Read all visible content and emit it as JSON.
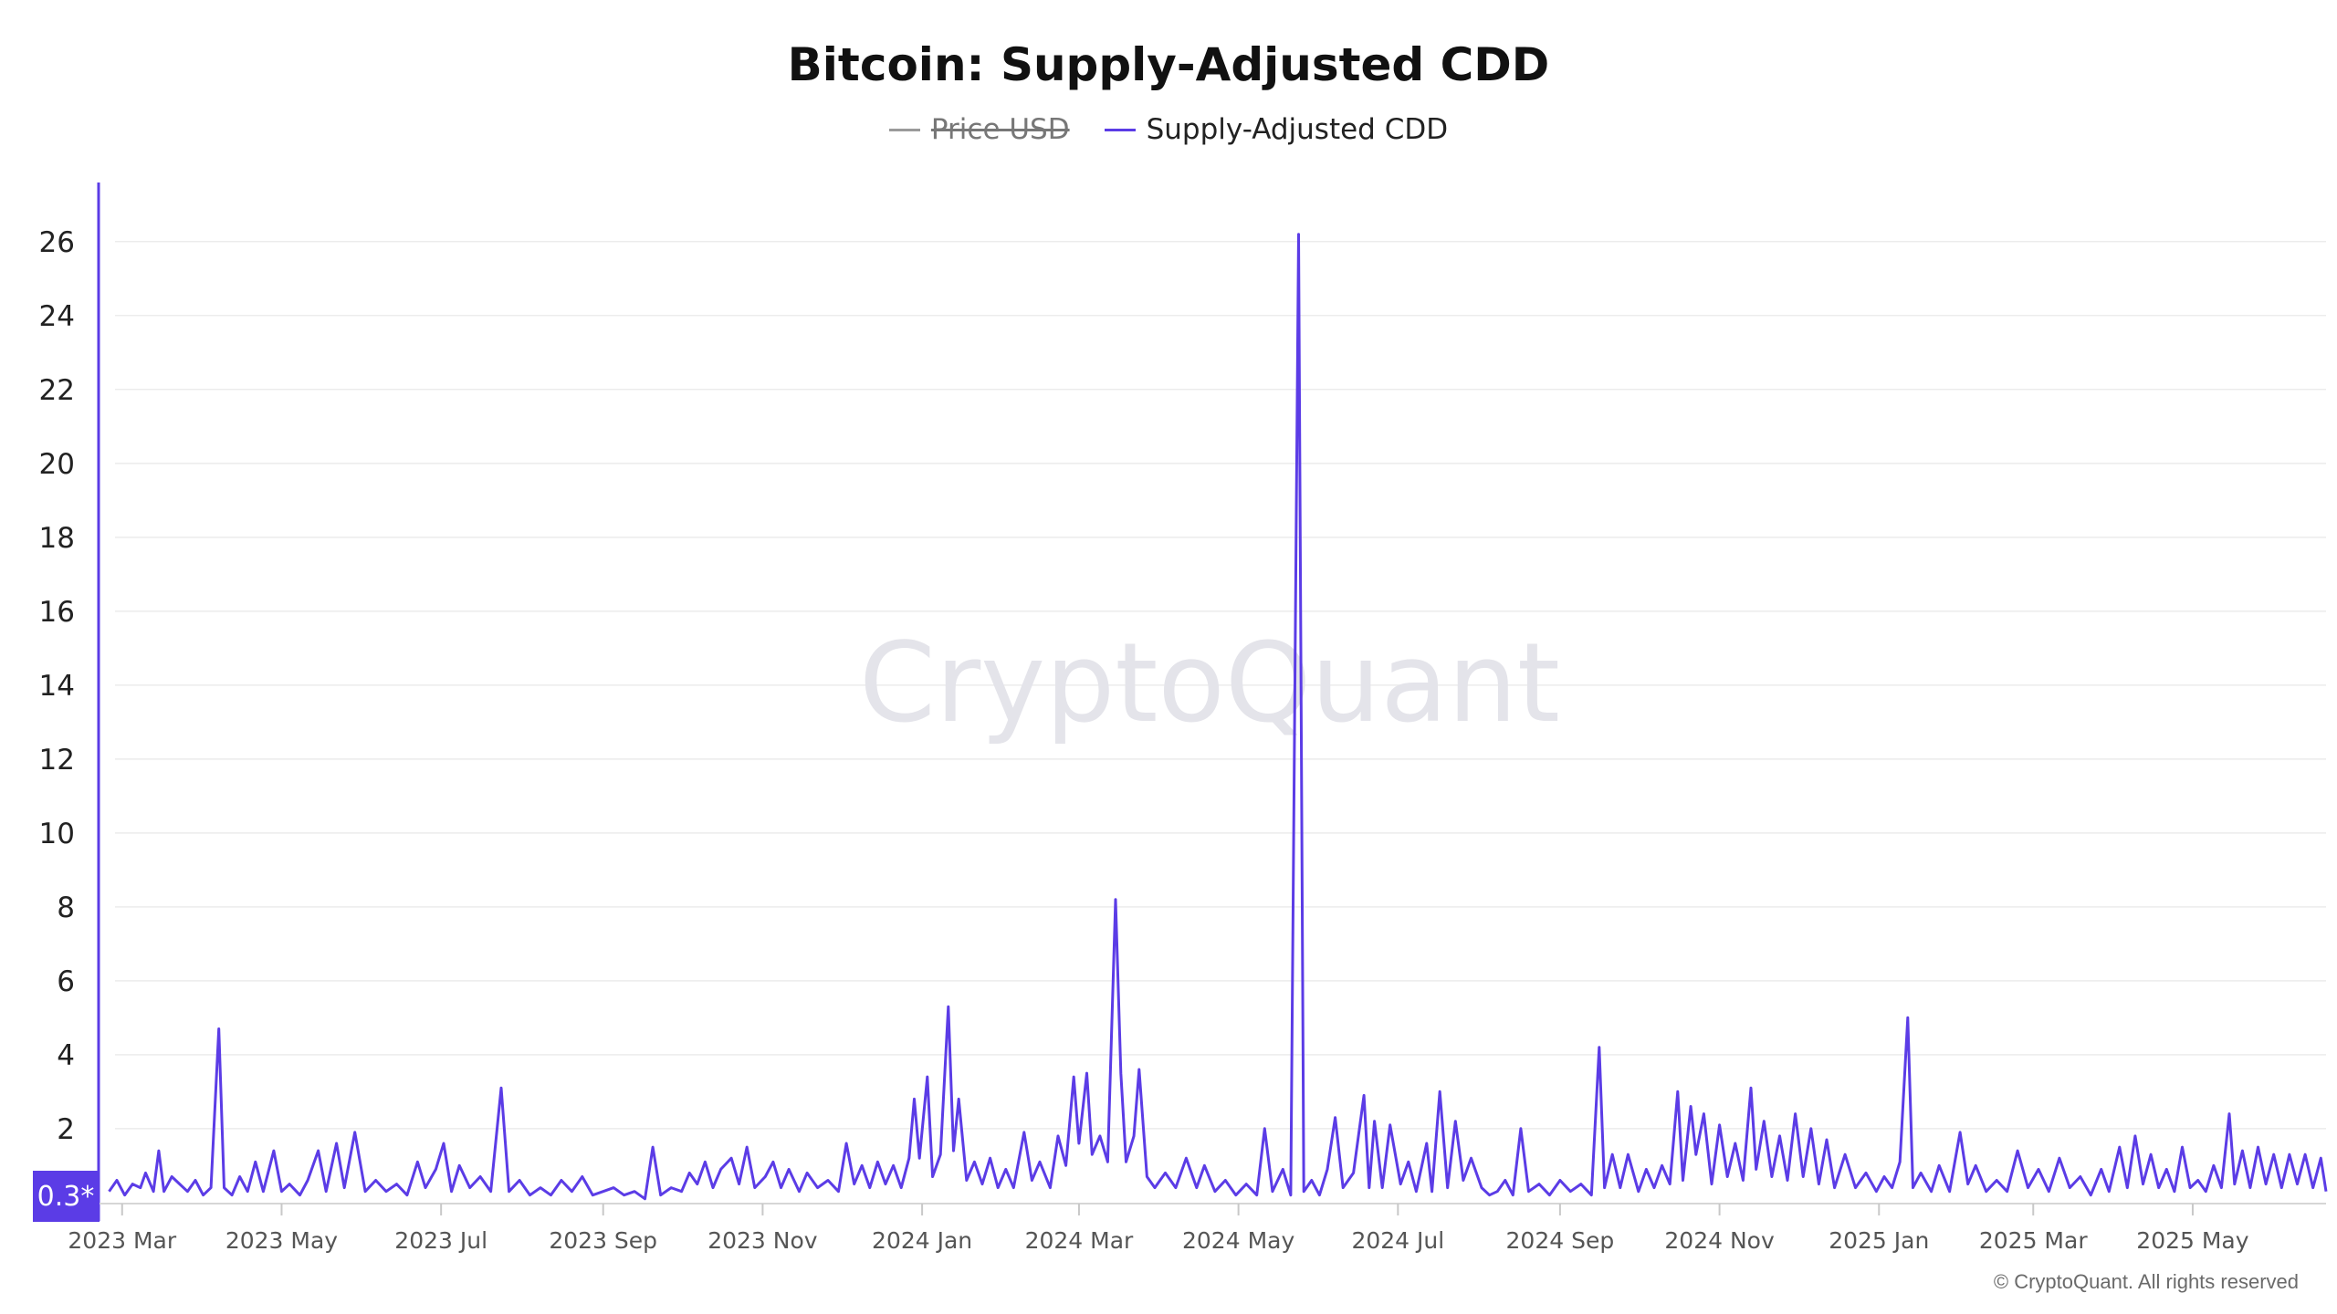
{
  "chart_data": {
    "type": "line",
    "title": "Bitcoin: Supply-Adjusted CDD",
    "legend": [
      {
        "name": "Price USD",
        "hidden": true,
        "color": "#9a9a9a"
      },
      {
        "name": "Supply-Adjusted CDD",
        "hidden": false,
        "color": "#5b3ce6"
      }
    ],
    "watermark": "CryptoQuant",
    "copyright": "© CryptoQuant. All rights reserved",
    "current_value_label": "0.3*",
    "ylim": [
      -0.3,
      27.6
    ],
    "yticks": [
      2,
      4,
      6,
      8,
      10,
      12,
      14,
      16,
      18,
      20,
      22,
      24,
      26
    ],
    "xlim": [
      "2023-02-20",
      "2025-06-21"
    ],
    "xticks": [
      {
        "label": "2023 Mar",
        "date": "2023-03-01"
      },
      {
        "label": "2023 May",
        "date": "2023-05-01"
      },
      {
        "label": "2023 Jul",
        "date": "2023-07-01"
      },
      {
        "label": "2023 Sep",
        "date": "2023-09-01"
      },
      {
        "label": "2023 Nov",
        "date": "2023-11-01"
      },
      {
        "label": "2024 Jan",
        "date": "2024-01-01"
      },
      {
        "label": "2024 Mar",
        "date": "2024-03-01"
      },
      {
        "label": "2024 May",
        "date": "2024-05-01"
      },
      {
        "label": "2024 Jul",
        "date": "2024-07-01"
      },
      {
        "label": "2024 Sep",
        "date": "2024-09-01"
      },
      {
        "label": "2024 Nov",
        "date": "2024-11-01"
      },
      {
        "label": "2025 Jan",
        "date": "2025-01-01"
      },
      {
        "label": "2025 Mar",
        "date": "2025-03-01"
      },
      {
        "label": "2025 May",
        "date": "2025-05-01"
      }
    ],
    "grid": true,
    "series": [
      {
        "name": "Supply-Adjusted CDD",
        "color": "#5b3ce6",
        "points": [
          [
            "2023-02-24",
            0.3
          ],
          [
            "2023-02-27",
            0.6
          ],
          [
            "2023-03-02",
            0.2
          ],
          [
            "2023-03-05",
            0.5
          ],
          [
            "2023-03-08",
            0.4
          ],
          [
            "2023-03-10",
            0.8
          ],
          [
            "2023-03-13",
            0.3
          ],
          [
            "2023-03-15",
            1.4
          ],
          [
            "2023-03-17",
            0.3
          ],
          [
            "2023-03-20",
            0.7
          ],
          [
            "2023-03-23",
            0.5
          ],
          [
            "2023-03-26",
            0.3
          ],
          [
            "2023-03-29",
            0.6
          ],
          [
            "2023-04-01",
            0.2
          ],
          [
            "2023-04-04",
            0.4
          ],
          [
            "2023-04-07",
            4.7
          ],
          [
            "2023-04-09",
            0.4
          ],
          [
            "2023-04-12",
            0.2
          ],
          [
            "2023-04-15",
            0.7
          ],
          [
            "2023-04-18",
            0.3
          ],
          [
            "2023-04-21",
            1.1
          ],
          [
            "2023-04-24",
            0.3
          ],
          [
            "2023-04-28",
            1.4
          ],
          [
            "2023-05-01",
            0.3
          ],
          [
            "2023-05-04",
            0.5
          ],
          [
            "2023-05-08",
            0.2
          ],
          [
            "2023-05-11",
            0.6
          ],
          [
            "2023-05-15",
            1.4
          ],
          [
            "2023-05-18",
            0.3
          ],
          [
            "2023-05-22",
            1.6
          ],
          [
            "2023-05-25",
            0.4
          ],
          [
            "2023-05-29",
            1.9
          ],
          [
            "2023-06-02",
            0.3
          ],
          [
            "2023-06-06",
            0.6
          ],
          [
            "2023-06-10",
            0.3
          ],
          [
            "2023-06-14",
            0.5
          ],
          [
            "2023-06-18",
            0.2
          ],
          [
            "2023-06-22",
            1.1
          ],
          [
            "2023-06-25",
            0.4
          ],
          [
            "2023-06-29",
            0.9
          ],
          [
            "2023-07-02",
            1.6
          ],
          [
            "2023-07-05",
            0.3
          ],
          [
            "2023-07-08",
            1.0
          ],
          [
            "2023-07-12",
            0.4
          ],
          [
            "2023-07-16",
            0.7
          ],
          [
            "2023-07-20",
            0.3
          ],
          [
            "2023-07-24",
            3.1
          ],
          [
            "2023-07-27",
            0.3
          ],
          [
            "2023-07-31",
            0.6
          ],
          [
            "2023-08-04",
            0.2
          ],
          [
            "2023-08-08",
            0.4
          ],
          [
            "2023-08-12",
            0.2
          ],
          [
            "2023-08-16",
            0.6
          ],
          [
            "2023-08-20",
            0.3
          ],
          [
            "2023-08-24",
            0.7
          ],
          [
            "2023-08-28",
            0.2
          ],
          [
            "2023-09-01",
            0.3
          ],
          [
            "2023-09-05",
            0.4
          ],
          [
            "2023-09-09",
            0.2
          ],
          [
            "2023-09-13",
            0.3
          ],
          [
            "2023-09-17",
            0.1
          ],
          [
            "2023-09-20",
            1.5
          ],
          [
            "2023-09-23",
            0.2
          ],
          [
            "2023-09-27",
            0.4
          ],
          [
            "2023-10-01",
            0.3
          ],
          [
            "2023-10-04",
            0.8
          ],
          [
            "2023-10-07",
            0.5
          ],
          [
            "2023-10-10",
            1.1
          ],
          [
            "2023-10-13",
            0.4
          ],
          [
            "2023-10-16",
            0.9
          ],
          [
            "2023-10-20",
            1.2
          ],
          [
            "2023-10-23",
            0.5
          ],
          [
            "2023-10-26",
            1.5
          ],
          [
            "2023-10-29",
            0.4
          ],
          [
            "2023-11-02",
            0.7
          ],
          [
            "2023-11-05",
            1.1
          ],
          [
            "2023-11-08",
            0.4
          ],
          [
            "2023-11-11",
            0.9
          ],
          [
            "2023-11-15",
            0.3
          ],
          [
            "2023-11-18",
            0.8
          ],
          [
            "2023-11-22",
            0.4
          ],
          [
            "2023-11-26",
            0.6
          ],
          [
            "2023-11-30",
            0.3
          ],
          [
            "2023-12-03",
            1.6
          ],
          [
            "2023-12-06",
            0.5
          ],
          [
            "2023-12-09",
            1.0
          ],
          [
            "2023-12-12",
            0.4
          ],
          [
            "2023-12-15",
            1.1
          ],
          [
            "2023-12-18",
            0.5
          ],
          [
            "2023-12-21",
            1.0
          ],
          [
            "2023-12-24",
            0.4
          ],
          [
            "2023-12-27",
            1.2
          ],
          [
            "2023-12-29",
            2.8
          ],
          [
            "2023-12-31",
            1.2
          ],
          [
            "2024-01-03",
            3.4
          ],
          [
            "2024-01-05",
            0.7
          ],
          [
            "2024-01-08",
            1.3
          ],
          [
            "2024-01-11",
            5.3
          ],
          [
            "2024-01-13",
            1.4
          ],
          [
            "2024-01-15",
            2.8
          ],
          [
            "2024-01-18",
            0.6
          ],
          [
            "2024-01-21",
            1.1
          ],
          [
            "2024-01-24",
            0.5
          ],
          [
            "2024-01-27",
            1.2
          ],
          [
            "2024-01-30",
            0.4
          ],
          [
            "2024-02-02",
            0.9
          ],
          [
            "2024-02-05",
            0.4
          ],
          [
            "2024-02-09",
            1.9
          ],
          [
            "2024-02-12",
            0.6
          ],
          [
            "2024-02-15",
            1.1
          ],
          [
            "2024-02-19",
            0.4
          ],
          [
            "2024-02-22",
            1.8
          ],
          [
            "2024-02-25",
            1.0
          ],
          [
            "2024-02-28",
            3.4
          ],
          [
            "2024-03-01",
            1.6
          ],
          [
            "2024-03-04",
            3.5
          ],
          [
            "2024-03-06",
            1.3
          ],
          [
            "2024-03-09",
            1.8
          ],
          [
            "2024-03-12",
            1.1
          ],
          [
            "2024-03-15",
            8.2
          ],
          [
            "2024-03-17",
            3.5
          ],
          [
            "2024-03-19",
            1.1
          ],
          [
            "2024-03-22",
            1.8
          ],
          [
            "2024-03-24",
            3.6
          ],
          [
            "2024-03-27",
            0.7
          ],
          [
            "2024-03-30",
            0.4
          ],
          [
            "2024-04-03",
            0.8
          ],
          [
            "2024-04-07",
            0.4
          ],
          [
            "2024-04-11",
            1.2
          ],
          [
            "2024-04-15",
            0.4
          ],
          [
            "2024-04-18",
            1.0
          ],
          [
            "2024-04-22",
            0.3
          ],
          [
            "2024-04-26",
            0.6
          ],
          [
            "2024-04-30",
            0.2
          ],
          [
            "2024-05-04",
            0.5
          ],
          [
            "2024-05-08",
            0.2
          ],
          [
            "2024-05-11",
            2.0
          ],
          [
            "2024-05-14",
            0.3
          ],
          [
            "2024-05-18",
            0.9
          ],
          [
            "2024-05-21",
            0.2
          ],
          [
            "2024-05-24",
            26.2
          ],
          [
            "2024-05-26",
            0.3
          ],
          [
            "2024-05-29",
            0.6
          ],
          [
            "2024-06-01",
            0.2
          ],
          [
            "2024-06-04",
            0.9
          ],
          [
            "2024-06-07",
            2.3
          ],
          [
            "2024-06-10",
            0.4
          ],
          [
            "2024-06-14",
            0.8
          ],
          [
            "2024-06-18",
            2.9
          ],
          [
            "2024-06-20",
            0.4
          ],
          [
            "2024-06-22",
            2.2
          ],
          [
            "2024-06-25",
            0.4
          ],
          [
            "2024-06-28",
            2.1
          ],
          [
            "2024-07-02",
            0.5
          ],
          [
            "2024-07-05",
            1.1
          ],
          [
            "2024-07-08",
            0.3
          ],
          [
            "2024-07-12",
            1.6
          ],
          [
            "2024-07-14",
            0.3
          ],
          [
            "2024-07-17",
            3.0
          ],
          [
            "2024-07-20",
            0.4
          ],
          [
            "2024-07-23",
            2.2
          ],
          [
            "2024-07-26",
            0.6
          ],
          [
            "2024-07-29",
            1.2
          ],
          [
            "2024-08-02",
            0.4
          ],
          [
            "2024-08-05",
            0.2
          ],
          [
            "2024-08-08",
            0.3
          ],
          [
            "2024-08-11",
            0.6
          ],
          [
            "2024-08-14",
            0.2
          ],
          [
            "2024-08-17",
            2.0
          ],
          [
            "2024-08-20",
            0.3
          ],
          [
            "2024-08-24",
            0.5
          ],
          [
            "2024-08-28",
            0.2
          ],
          [
            "2024-09-01",
            0.6
          ],
          [
            "2024-09-05",
            0.3
          ],
          [
            "2024-09-09",
            0.5
          ],
          [
            "2024-09-13",
            0.2
          ],
          [
            "2024-09-16",
            4.2
          ],
          [
            "2024-09-18",
            0.4
          ],
          [
            "2024-09-21",
            1.3
          ],
          [
            "2024-09-24",
            0.4
          ],
          [
            "2024-09-27",
            1.3
          ],
          [
            "2024-10-01",
            0.3
          ],
          [
            "2024-10-04",
            0.9
          ],
          [
            "2024-10-07",
            0.4
          ],
          [
            "2024-10-10",
            1.0
          ],
          [
            "2024-10-13",
            0.5
          ],
          [
            "2024-10-16",
            3.0
          ],
          [
            "2024-10-18",
            0.6
          ],
          [
            "2024-10-21",
            2.6
          ],
          [
            "2024-10-23",
            1.3
          ],
          [
            "2024-10-26",
            2.4
          ],
          [
            "2024-10-29",
            0.5
          ],
          [
            "2024-11-01",
            2.1
          ],
          [
            "2024-11-04",
            0.7
          ],
          [
            "2024-11-07",
            1.6
          ],
          [
            "2024-11-10",
            0.6
          ],
          [
            "2024-11-13",
            3.1
          ],
          [
            "2024-11-15",
            0.9
          ],
          [
            "2024-11-18",
            2.2
          ],
          [
            "2024-11-21",
            0.7
          ],
          [
            "2024-11-24",
            1.8
          ],
          [
            "2024-11-27",
            0.6
          ],
          [
            "2024-11-30",
            2.4
          ],
          [
            "2024-12-03",
            0.7
          ],
          [
            "2024-12-06",
            2.0
          ],
          [
            "2024-12-09",
            0.5
          ],
          [
            "2024-12-12",
            1.7
          ],
          [
            "2024-12-15",
            0.4
          ],
          [
            "2024-12-19",
            1.3
          ],
          [
            "2024-12-23",
            0.4
          ],
          [
            "2024-12-27",
            0.8
          ],
          [
            "2024-12-31",
            0.3
          ],
          [
            "2025-01-03",
            0.7
          ],
          [
            "2025-01-06",
            0.4
          ],
          [
            "2025-01-09",
            1.1
          ],
          [
            "2025-01-12",
            5.0
          ],
          [
            "2025-01-14",
            0.4
          ],
          [
            "2025-01-17",
            0.8
          ],
          [
            "2025-01-21",
            0.3
          ],
          [
            "2025-01-24",
            1.0
          ],
          [
            "2025-01-28",
            0.3
          ],
          [
            "2025-02-01",
            1.9
          ],
          [
            "2025-02-04",
            0.5
          ],
          [
            "2025-02-07",
            1.0
          ],
          [
            "2025-02-11",
            0.3
          ],
          [
            "2025-02-15",
            0.6
          ],
          [
            "2025-02-19",
            0.3
          ],
          [
            "2025-02-23",
            1.4
          ],
          [
            "2025-02-27",
            0.4
          ],
          [
            "2025-03-03",
            0.9
          ],
          [
            "2025-03-07",
            0.3
          ],
          [
            "2025-03-11",
            1.2
          ],
          [
            "2025-03-15",
            0.4
          ],
          [
            "2025-03-19",
            0.7
          ],
          [
            "2025-03-23",
            0.2
          ],
          [
            "2025-03-27",
            0.9
          ],
          [
            "2025-03-30",
            0.3
          ],
          [
            "2025-04-03",
            1.5
          ],
          [
            "2025-04-06",
            0.4
          ],
          [
            "2025-04-09",
            1.8
          ],
          [
            "2025-04-12",
            0.5
          ],
          [
            "2025-04-15",
            1.3
          ],
          [
            "2025-04-18",
            0.4
          ],
          [
            "2025-04-21",
            0.9
          ],
          [
            "2025-04-24",
            0.3
          ],
          [
            "2025-04-27",
            1.5
          ],
          [
            "2025-04-30",
            0.4
          ],
          [
            "2025-05-03",
            0.6
          ],
          [
            "2025-05-06",
            0.3
          ],
          [
            "2025-05-09",
            1.0
          ],
          [
            "2025-05-12",
            0.4
          ],
          [
            "2025-05-15",
            2.4
          ],
          [
            "2025-05-17",
            0.5
          ],
          [
            "2025-05-20",
            1.4
          ],
          [
            "2025-05-23",
            0.4
          ],
          [
            "2025-05-26",
            1.5
          ],
          [
            "2025-05-29",
            0.5
          ],
          [
            "2025-06-01",
            1.3
          ],
          [
            "2025-06-04",
            0.4
          ],
          [
            "2025-06-07",
            1.3
          ],
          [
            "2025-06-10",
            0.5
          ],
          [
            "2025-06-13",
            1.3
          ],
          [
            "2025-06-16",
            0.4
          ],
          [
            "2025-06-19",
            1.2
          ],
          [
            "2025-06-21",
            0.3
          ]
        ]
      }
    ]
  }
}
